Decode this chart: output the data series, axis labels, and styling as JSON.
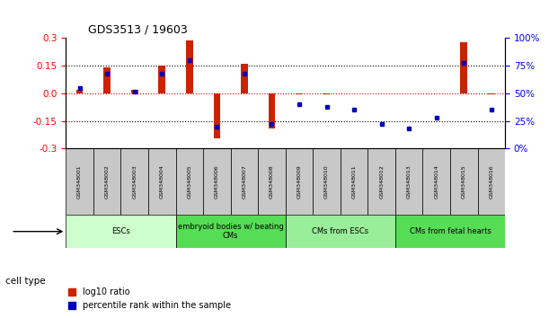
{
  "title": "GDS3513 / 19603",
  "samples": [
    "GSM348001",
    "GSM348002",
    "GSM348003",
    "GSM348004",
    "GSM348005",
    "GSM348006",
    "GSM348007",
    "GSM348008",
    "GSM348009",
    "GSM348010",
    "GSM348011",
    "GSM348012",
    "GSM348013",
    "GSM348014",
    "GSM348015",
    "GSM348016"
  ],
  "log10_ratio": [
    0.02,
    0.14,
    0.02,
    0.15,
    0.29,
    -0.245,
    0.16,
    -0.19,
    -0.005,
    -0.005,
    0.0,
    0.0,
    0.0,
    0.0,
    0.28,
    -0.005
  ],
  "percentile_rank": [
    55,
    68,
    52,
    68,
    80,
    20,
    68,
    22,
    40,
    38,
    35,
    22,
    18,
    28,
    78,
    35
  ],
  "cell_type_groups": [
    {
      "label": "ESCs",
      "start": 0,
      "end": 3,
      "color": "#ccffcc"
    },
    {
      "label": "embryoid bodies w/ beating\nCMs",
      "start": 4,
      "end": 7,
      "color": "#55dd55"
    },
    {
      "label": "CMs from ESCs",
      "start": 8,
      "end": 11,
      "color": "#99ee99"
    },
    {
      "label": "CMs from fetal hearts",
      "start": 12,
      "end": 15,
      "color": "#55dd55"
    }
  ],
  "ylim_left": [
    -0.3,
    0.3
  ],
  "ylim_right": [
    0,
    100
  ],
  "yticks_left": [
    -0.3,
    -0.15,
    0.0,
    0.15,
    0.3
  ],
  "yticks_right": [
    0,
    25,
    50,
    75,
    100
  ],
  "bar_color": "#cc2200",
  "dot_color": "#0000bb",
  "hline_color": "#cc0000",
  "dotted_color": "#000000",
  "legend_bar_label": "log10 ratio",
  "legend_dot_label": "percentile rank within the sample",
  "cell_type_label": "cell type",
  "sample_box_color": "#c8c8c8",
  "figsize": [
    6.11,
    3.54
  ],
  "dpi": 100
}
